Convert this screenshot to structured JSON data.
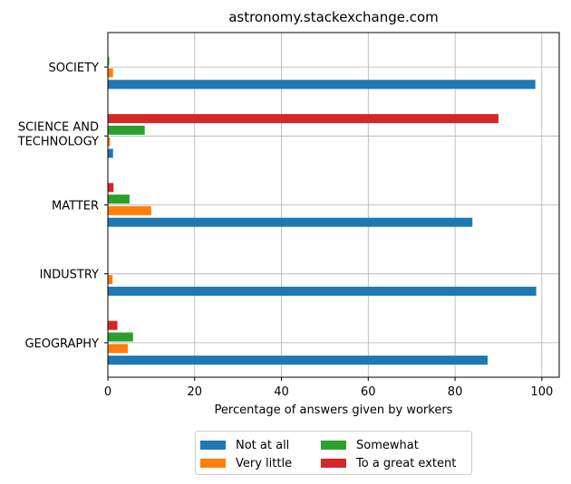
{
  "chart_data": {
    "type": "bar",
    "orientation": "horizontal",
    "title": "astronomy.stackexchange.com",
    "xlabel": "Percentage of answers given by workers",
    "ylabel": "",
    "xlim": [
      0,
      104
    ],
    "xticks": [
      0,
      20,
      40,
      60,
      80,
      100
    ],
    "grid": true,
    "legend_position": "bottom-center",
    "categories": [
      "GEOGRAPHY",
      "INDUSTRY",
      "MATTER",
      "SCIENCE AND\nTECHNOLOGY",
      "SOCIETY"
    ],
    "series": [
      {
        "name": "Not at all",
        "color": "#1f77b4",
        "values": [
          87.5,
          98.7,
          84.0,
          1.2,
          98.5
        ]
      },
      {
        "name": "Very little",
        "color": "#ff7f0e",
        "values": [
          4.6,
          1.1,
          10.0,
          0.5,
          1.2
        ]
      },
      {
        "name": "Somewhat",
        "color": "#2ca02c",
        "values": [
          5.8,
          0.0,
          5.0,
          8.5,
          0.3
        ]
      },
      {
        "name": "To a great extent",
        "color": "#d62728",
        "values": [
          2.2,
          0.0,
          1.3,
          90.0,
          0.0
        ]
      }
    ]
  }
}
